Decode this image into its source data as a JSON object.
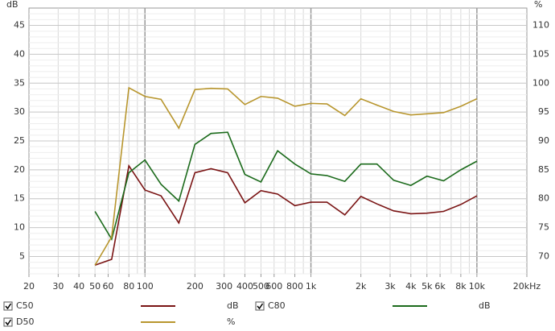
{
  "chart_data": {
    "type": "line",
    "y_label": "dB",
    "y2_label": "%",
    "log_x": true,
    "grid": true,
    "minor_grid": true,
    "xlim": [
      20,
      20000
    ],
    "ylim": [
      2,
      48
    ],
    "y2lim": [
      67,
      113
    ],
    "xticks": [
      20,
      30,
      40,
      50,
      60,
      80,
      100,
      200,
      300,
      400,
      500,
      600,
      800,
      {
        "value": 1000,
        "label": "1k"
      },
      {
        "value": 2000,
        "label": "2k"
      },
      {
        "value": 3000,
        "label": "3k"
      },
      {
        "value": 4000,
        "label": "4k"
      },
      {
        "value": 5000,
        "label": "5k"
      },
      {
        "value": 6000,
        "label": "6k"
      },
      {
        "value": 8000,
        "label": "8k"
      },
      {
        "value": 10000,
        "label": "10k"
      },
      {
        "value": 20000,
        "label": "20kHz"
      }
    ],
    "yticks": [
      5,
      10,
      15,
      20,
      25,
      30,
      35,
      40,
      45
    ],
    "y2ticks": [
      70,
      75,
      80,
      85,
      90,
      95,
      100,
      105,
      110
    ],
    "x": [
      50,
      63,
      80,
      100,
      125,
      160,
      200,
      250,
      315,
      400,
      500,
      630,
      800,
      1000,
      1250,
      1600,
      2000,
      2500,
      3150,
      4000,
      5000,
      6300,
      8000,
      10000
    ],
    "series": [
      {
        "name": "C50",
        "unit": "dB",
        "color": "#7a1414",
        "values": [
          3.5,
          4.5,
          20.7,
          16.5,
          15.5,
          10.8,
          19.5,
          20.2,
          19.5,
          14.3,
          16.4,
          15.8,
          13.8,
          14.4,
          14.4,
          12.2,
          15.4,
          14.1,
          12.9,
          12.4,
          12.5,
          12.8,
          14,
          15.5
        ]
      },
      {
        "name": "C80",
        "unit": "dB",
        "color": "#1c6b1c",
        "values": [
          12.8,
          8,
          19.5,
          21.7,
          17.5,
          14.6,
          24.4,
          26.3,
          26.5,
          19.2,
          17.9,
          23.3,
          21,
          19.3,
          19,
          18,
          21,
          21,
          18.2,
          17.3,
          18.9,
          18.1,
          20,
          21.5
        ]
      },
      {
        "name": "D50",
        "unit": "%",
        "color": "#b8962e",
        "axis": "y2",
        "values": [
          68.5,
          73.4,
          99.2,
          97.7,
          97.2,
          92.2,
          98.9,
          99.1,
          99,
          96.3,
          97.7,
          97.4,
          96,
          96.5,
          96.4,
          94.4,
          97.3,
          96.2,
          95.1,
          94.5,
          94.7,
          94.9,
          96,
          97.3
        ]
      }
    ]
  }
}
